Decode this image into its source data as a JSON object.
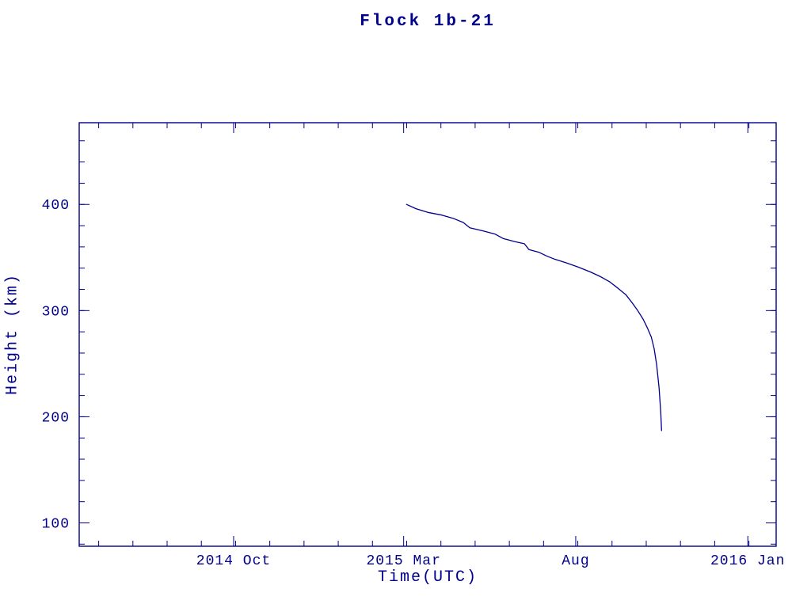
{
  "colors": {
    "accent": "#00008B",
    "background": "#FFFFFF"
  },
  "chart_data": {
    "type": "line",
    "title": "Flock 1b-21",
    "xlabel": "Time(UTC)",
    "ylabel": "Height (km)",
    "xlim": [
      2014.372,
      2016.069
    ],
    "ylim": [
      78,
      477
    ],
    "x_ticks": [
      {
        "value": 2014.748,
        "label": "2014 Oct"
      },
      {
        "value": 2015.162,
        "label": "2015 Mar"
      },
      {
        "value": 2015.581,
        "label": "Aug"
      },
      {
        "value": 2016.0,
        "label": "2016 Jan"
      }
    ],
    "x_minor_interval": 0.08333,
    "y_ticks": [
      100,
      200,
      300,
      400
    ],
    "y_minor_interval": 20,
    "grid": false,
    "legend": false,
    "line_color": "#00008B",
    "series": [
      {
        "name": "Flock 1b-21 height",
        "x": [
          2015.169,
          2015.192,
          2015.221,
          2015.255,
          2015.282,
          2015.307,
          2015.323,
          2015.356,
          2015.385,
          2015.404,
          2015.433,
          2015.456,
          2015.467,
          2015.491,
          2015.51,
          2015.529,
          2015.558,
          2015.587,
          2015.616,
          2015.641,
          2015.664,
          2015.684,
          2015.703,
          2015.718,
          2015.732,
          2015.745,
          2015.755,
          2015.765,
          2015.772,
          2015.778,
          2015.784,
          2015.788,
          2015.79
        ],
        "y": [
          400,
          396,
          392.5,
          390,
          387,
          383,
          378,
          375,
          372,
          368,
          365,
          363,
          357.5,
          355,
          351.5,
          348.5,
          345,
          341,
          336.5,
          332,
          327,
          321,
          315,
          307.5,
          300,
          292,
          284,
          275,
          264,
          249,
          227,
          204,
          187
        ]
      }
    ]
  }
}
